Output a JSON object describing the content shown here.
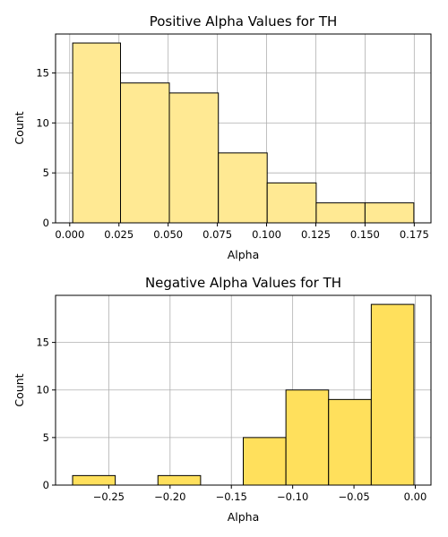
{
  "chart_data": [
    {
      "type": "bar",
      "title": "Positive Alpha Values for TH",
      "xlabel": "Alpha",
      "ylabel": "Count",
      "bin_edges": [
        0.0015,
        0.0258,
        0.0506,
        0.0755,
        0.1003,
        0.1252,
        0.15,
        0.1748
      ],
      "values": [
        18,
        14,
        13,
        7,
        4,
        2,
        2
      ],
      "xlim": [
        -0.0072,
        0.1835
      ],
      "ylim": [
        0,
        18.9
      ],
      "xticks": [
        0.0,
        0.025,
        0.05,
        0.075,
        0.1,
        0.125,
        0.15,
        0.175
      ],
      "xtick_labels": [
        "0.000",
        "0.025",
        "0.050",
        "0.075",
        "0.100",
        "0.125",
        "0.150",
        "0.175"
      ],
      "yticks": [
        0,
        5,
        10,
        15
      ],
      "ytick_labels": [
        "0",
        "5",
        "10",
        "15"
      ],
      "grid": true,
      "bar_color": "#ffe993",
      "edge_color": "#000000"
    },
    {
      "type": "bar",
      "title": "Negative Alpha Values for TH",
      "xlabel": "Alpha",
      "ylabel": "Count",
      "bin_edges": [
        -0.2795,
        -0.2447,
        -0.2099,
        -0.1751,
        -0.1403,
        -0.1055,
        -0.0707,
        -0.0359,
        -0.0011
      ],
      "values": [
        1,
        0,
        1,
        0,
        5,
        10,
        9,
        19
      ],
      "xlim": [
        -0.2934,
        0.0128
      ],
      "ylim": [
        0,
        19.95
      ],
      "xticks": [
        -0.25,
        -0.2,
        -0.15,
        -0.1,
        -0.05,
        0.0
      ],
      "xtick_labels": [
        "−0.25",
        "−0.20",
        "−0.15",
        "−0.10",
        "−0.05",
        "0.00"
      ],
      "yticks": [
        0,
        5,
        10,
        15
      ],
      "ytick_labels": [
        "0",
        "5",
        "10",
        "15"
      ],
      "grid": true,
      "bar_color": "#ffe05c",
      "edge_color": "#000000"
    }
  ]
}
